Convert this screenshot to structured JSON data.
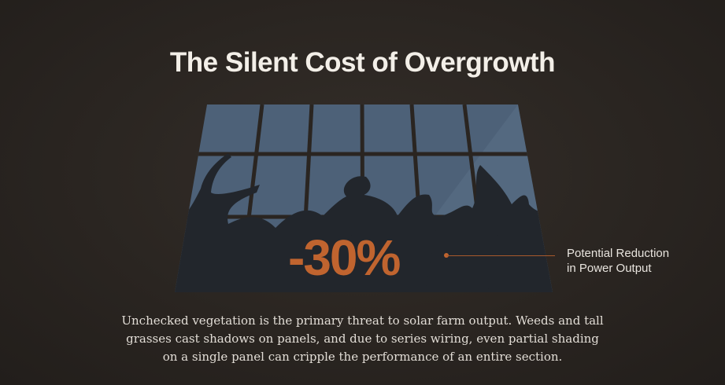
{
  "title": "The Silent Cost of Overgrowth",
  "stat": {
    "value": "-30%",
    "label_line1": "Potential Reduction",
    "label_line2": "in Power Output"
  },
  "description": "Unchecked vegetation is the primary threat to solar farm output. Weeds and tall grasses cast shadows on panels, and due to series wiring, even partial shading on a single panel can cripple the performance of an entire section.",
  "colors": {
    "accent": "#c0642f",
    "panel": "#4d6178",
    "silhouette": "#22262c",
    "background": "#2a2521"
  },
  "illustration": {
    "subject": "solar panel overgrown by thorny vegetation silhouette",
    "icon": "solar-panel-icon"
  }
}
